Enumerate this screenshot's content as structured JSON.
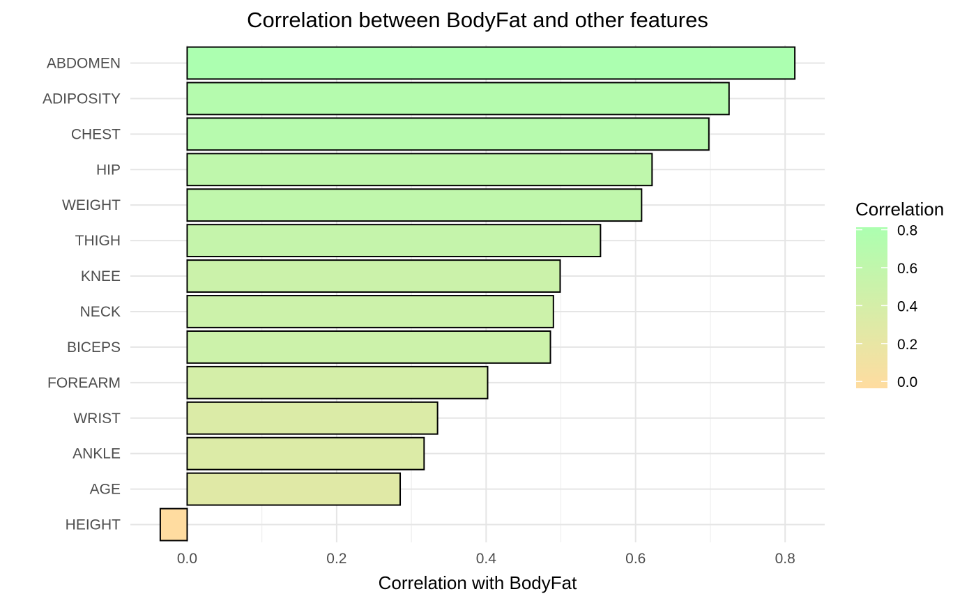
{
  "chart_data": {
    "type": "bar",
    "orientation": "horizontal",
    "title": "Correlation between BodyFat and other features",
    "xlabel": "Correlation with BodyFat",
    "ylabel": "",
    "categories": [
      "ABDOMEN",
      "ADIPOSITY",
      "CHEST",
      "HIP",
      "WEIGHT",
      "THIGH",
      "KNEE",
      "NECK",
      "BICEPS",
      "FOREARM",
      "WRIST",
      "ANKLE",
      "AGE",
      "HEIGHT"
    ],
    "values": [
      0.813,
      0.725,
      0.698,
      0.622,
      0.608,
      0.553,
      0.499,
      0.49,
      0.486,
      0.402,
      0.335,
      0.317,
      0.285,
      -0.036
    ],
    "xlim": [
      -0.076,
      0.853
    ],
    "xticks": [
      "0.0",
      "0.2",
      "0.4",
      "0.6",
      "0.8"
    ],
    "xtick_values": [
      0,
      0.2,
      0.4,
      0.6,
      0.8
    ],
    "grid": true,
    "bar_outline": "#000000",
    "color_scale": {
      "low": "#ffdca0",
      "high": "#acffb0",
      "min": -0.036,
      "max": 0.813
    },
    "legend": {
      "title": "Correlation",
      "placement": "right",
      "labels": [
        "0.8",
        "0.6",
        "0.4",
        "0.2",
        "0.0"
      ],
      "label_values": [
        0.8,
        0.6,
        0.4,
        0.2,
        0.0
      ]
    }
  }
}
